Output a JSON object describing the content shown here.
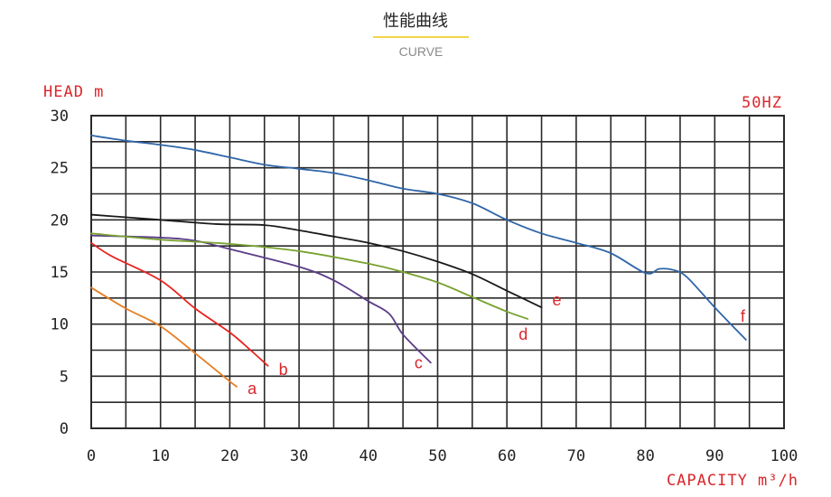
{
  "header": {
    "title": "性能曲线",
    "subtitle": "CURVE"
  },
  "colors": {
    "grid": "#2a2a2a",
    "red_text": "#d9262b",
    "tick_text": "#222222",
    "accent_underline": "#f2d64b",
    "subtitle": "#8a8a8a"
  },
  "chart_data": {
    "type": "line",
    "ylabel": "HEAD m",
    "xlabel": "CAPACITY m³/h",
    "frequency_label": "50HZ",
    "xlim": [
      0,
      100
    ],
    "ylim": [
      0,
      30
    ],
    "grid": true,
    "x_ticks": [
      0,
      10,
      20,
      30,
      40,
      50,
      60,
      70,
      80,
      90,
      100
    ],
    "y_ticks": [
      0,
      5,
      10,
      15,
      20,
      25,
      30
    ],
    "series": [
      {
        "name": "a",
        "color": "#e67e22",
        "points": [
          [
            0,
            13.5
          ],
          [
            5,
            11.5
          ],
          [
            10,
            9.8
          ],
          [
            15,
            7.2
          ],
          [
            20,
            4.5
          ],
          [
            21,
            4.0
          ]
        ]
      },
      {
        "name": "b",
        "color": "#e8231f",
        "points": [
          [
            0,
            17.8
          ],
          [
            3,
            16.5
          ],
          [
            10,
            14.2
          ],
          [
            15,
            11.5
          ],
          [
            20,
            9.2
          ],
          [
            23,
            7.5
          ],
          [
            25.5,
            6.0
          ]
        ]
      },
      {
        "name": "c",
        "color": "#5b3c88",
        "points": [
          [
            0,
            18.5
          ],
          [
            10,
            18.3
          ],
          [
            15,
            18.0
          ],
          [
            20,
            17.2
          ],
          [
            30,
            15.5
          ],
          [
            35,
            14.2
          ],
          [
            40,
            12.2
          ],
          [
            43,
            11.0
          ],
          [
            45,
            9.0
          ],
          [
            49,
            6.3
          ]
        ]
      },
      {
        "name": "d",
        "color": "#78a22f",
        "points": [
          [
            0,
            18.7
          ],
          [
            10,
            18.1
          ],
          [
            20,
            17.7
          ],
          [
            30,
            17.0
          ],
          [
            40,
            15.8
          ],
          [
            45,
            15.0
          ],
          [
            50,
            14.0
          ],
          [
            55,
            12.6
          ],
          [
            60,
            11.2
          ],
          [
            63,
            10.5
          ]
        ]
      },
      {
        "name": "e",
        "color": "#1a1a1a",
        "points": [
          [
            0,
            20.5
          ],
          [
            10,
            20.0
          ],
          [
            18,
            19.6
          ],
          [
            25,
            19.5
          ],
          [
            30,
            19.0
          ],
          [
            35,
            18.4
          ],
          [
            40,
            17.8
          ],
          [
            45,
            17.0
          ],
          [
            50,
            16.0
          ],
          [
            55,
            14.8
          ],
          [
            60,
            13.2
          ],
          [
            65,
            11.6
          ]
        ]
      },
      {
        "name": "f",
        "color": "#2f66a8",
        "points": [
          [
            0,
            28.1
          ],
          [
            5,
            27.6
          ],
          [
            10,
            27.2
          ],
          [
            15,
            26.7
          ],
          [
            20,
            26.0
          ],
          [
            25,
            25.3
          ],
          [
            30,
            24.9
          ],
          [
            35,
            24.5
          ],
          [
            40,
            23.8
          ],
          [
            45,
            23.0
          ],
          [
            50,
            22.5
          ],
          [
            55,
            21.6
          ],
          [
            60,
            20.0
          ],
          [
            65,
            18.7
          ],
          [
            70,
            17.8
          ],
          [
            75,
            16.8
          ],
          [
            80,
            14.9
          ],
          [
            82,
            15.3
          ],
          [
            84,
            15.2
          ],
          [
            86,
            14.5
          ],
          [
            90,
            11.6
          ],
          [
            94.5,
            8.5
          ]
        ]
      }
    ]
  }
}
